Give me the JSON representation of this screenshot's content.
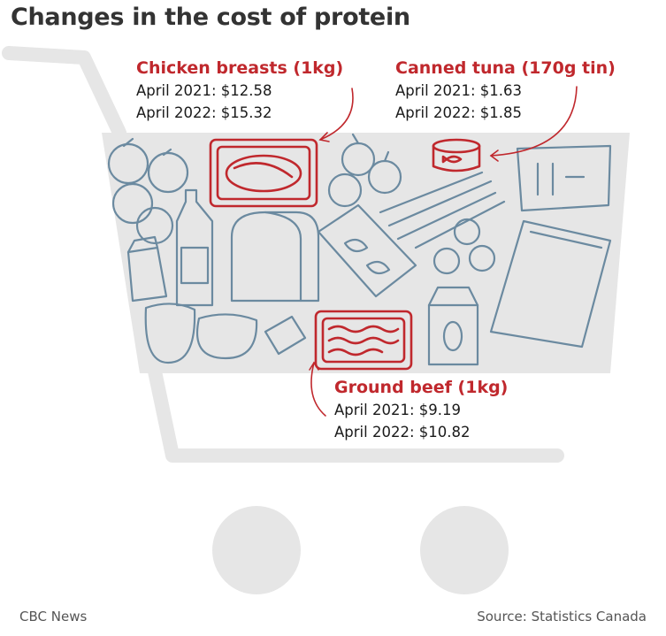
{
  "title": "Changes in the cost of protein",
  "items": [
    {
      "name": "Chicken breasts (1kg)",
      "april_2021": "April 2021: $12.58",
      "april_2022": "April 2022: $15.32"
    },
    {
      "name": "Canned tuna (170g tin)",
      "april_2021": "April 2021: $1.63",
      "april_2022": "April 2022: $1.85"
    },
    {
      "name": "Ground beef (1kg)",
      "april_2021": "April 2021: $9.19",
      "april_2022": "April 2022: $10.82"
    }
  ],
  "footer": {
    "credit": "CBC News",
    "source": "Source: Statistics Canada"
  },
  "colors": {
    "highlight": "#c0282d",
    "outline": "#6b8aa0",
    "cart": "#e6e6e6"
  }
}
